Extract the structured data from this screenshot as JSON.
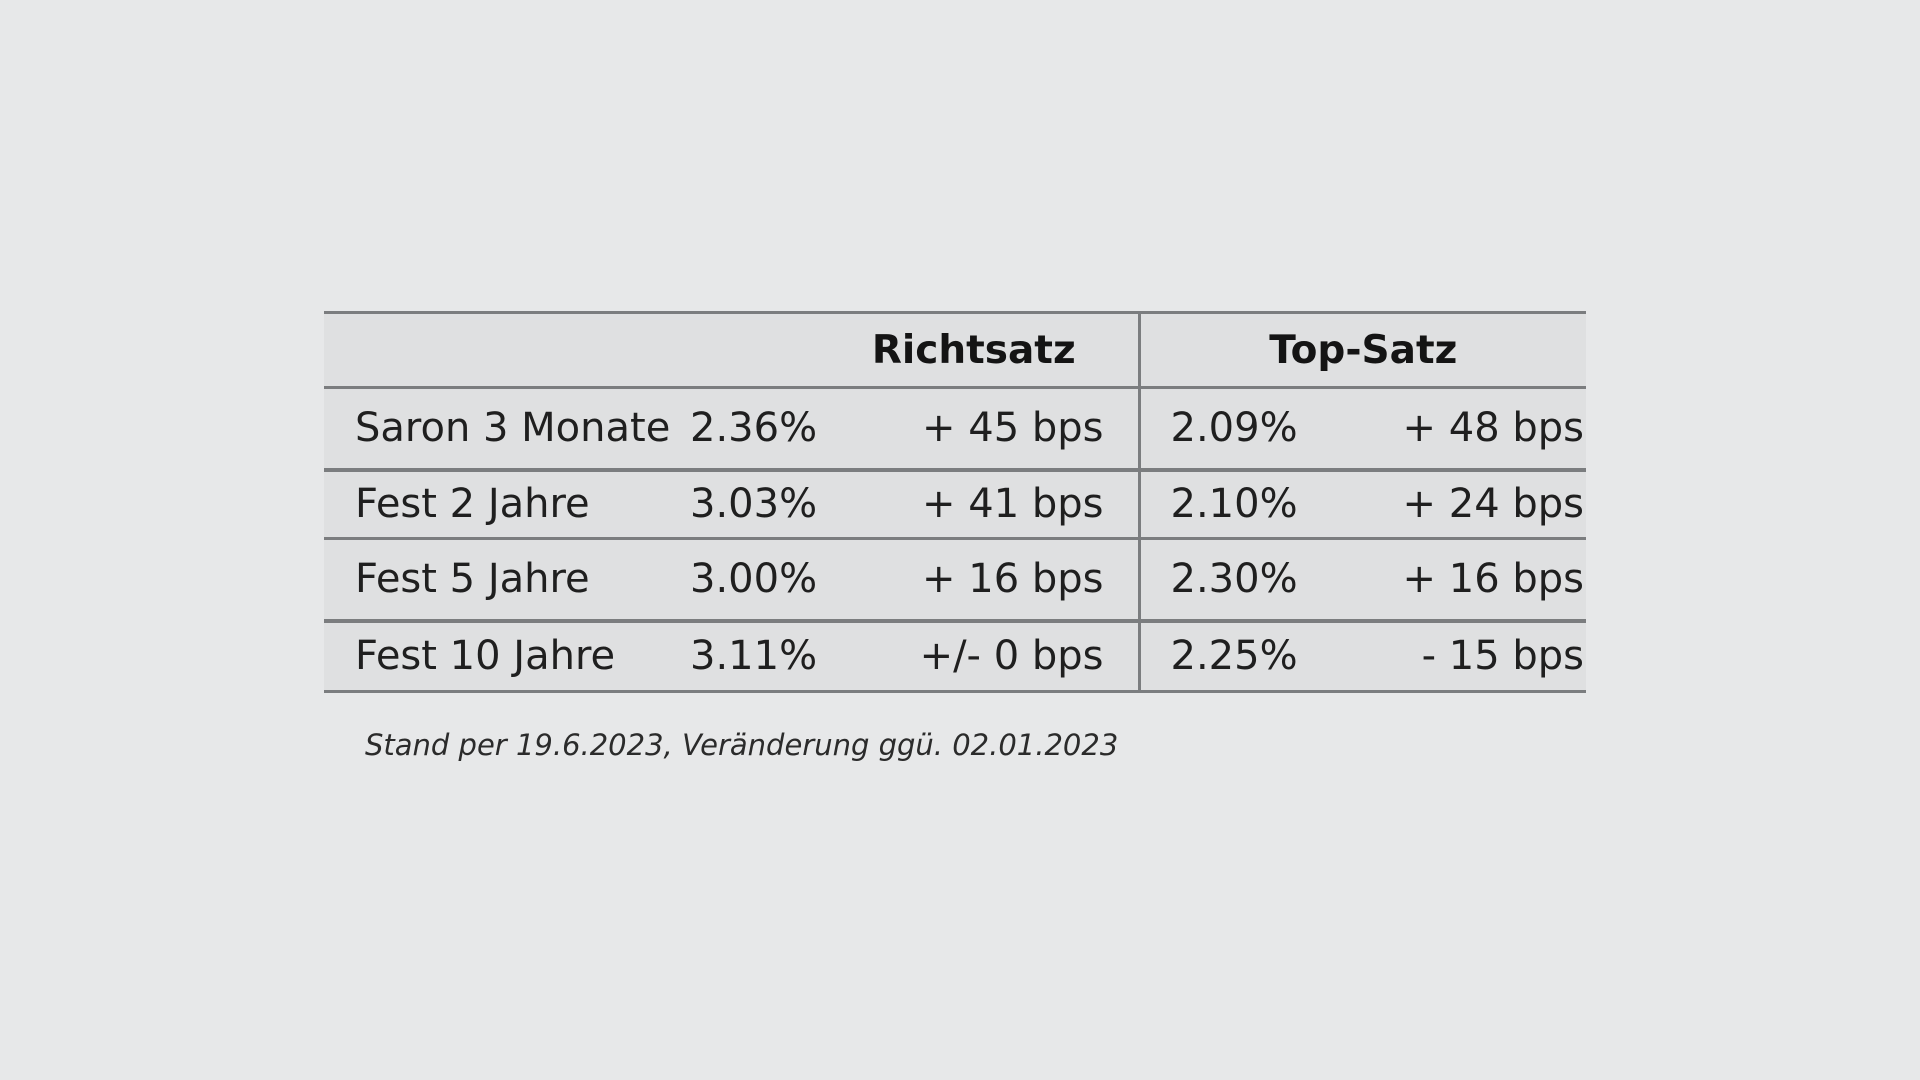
{
  "table": {
    "headers": {
      "label": "",
      "richtsatz": "Richtsatz",
      "top_satz": "Top-Satz"
    },
    "rows": [
      {
        "label": "Saron 3 Monate",
        "richtsatz_rate": "2.36%",
        "richtsatz_change": "+ 45 bps",
        "top_rate": "2.09%",
        "top_change": "+ 48 bps"
      },
      {
        "label": "Fest 2 Jahre",
        "richtsatz_rate": "3.03%",
        "richtsatz_change": "+ 41 bps",
        "top_rate": "2.10%",
        "top_change": "+ 24 bps"
      },
      {
        "label": "Fest 5 Jahre",
        "richtsatz_rate": "3.00%",
        "richtsatz_change": "+ 16 bps",
        "top_rate": "2.30%",
        "top_change": "+ 16 bps"
      },
      {
        "label": "Fest 10 Jahre",
        "richtsatz_rate": "3.11%",
        "richtsatz_change": "+/- 0 bps",
        "top_rate": "2.25%",
        "top_change": "- 15 bps"
      }
    ]
  },
  "footnote": "Stand per 19.6.2023, Veränderung ggü. 02.01.2023"
}
